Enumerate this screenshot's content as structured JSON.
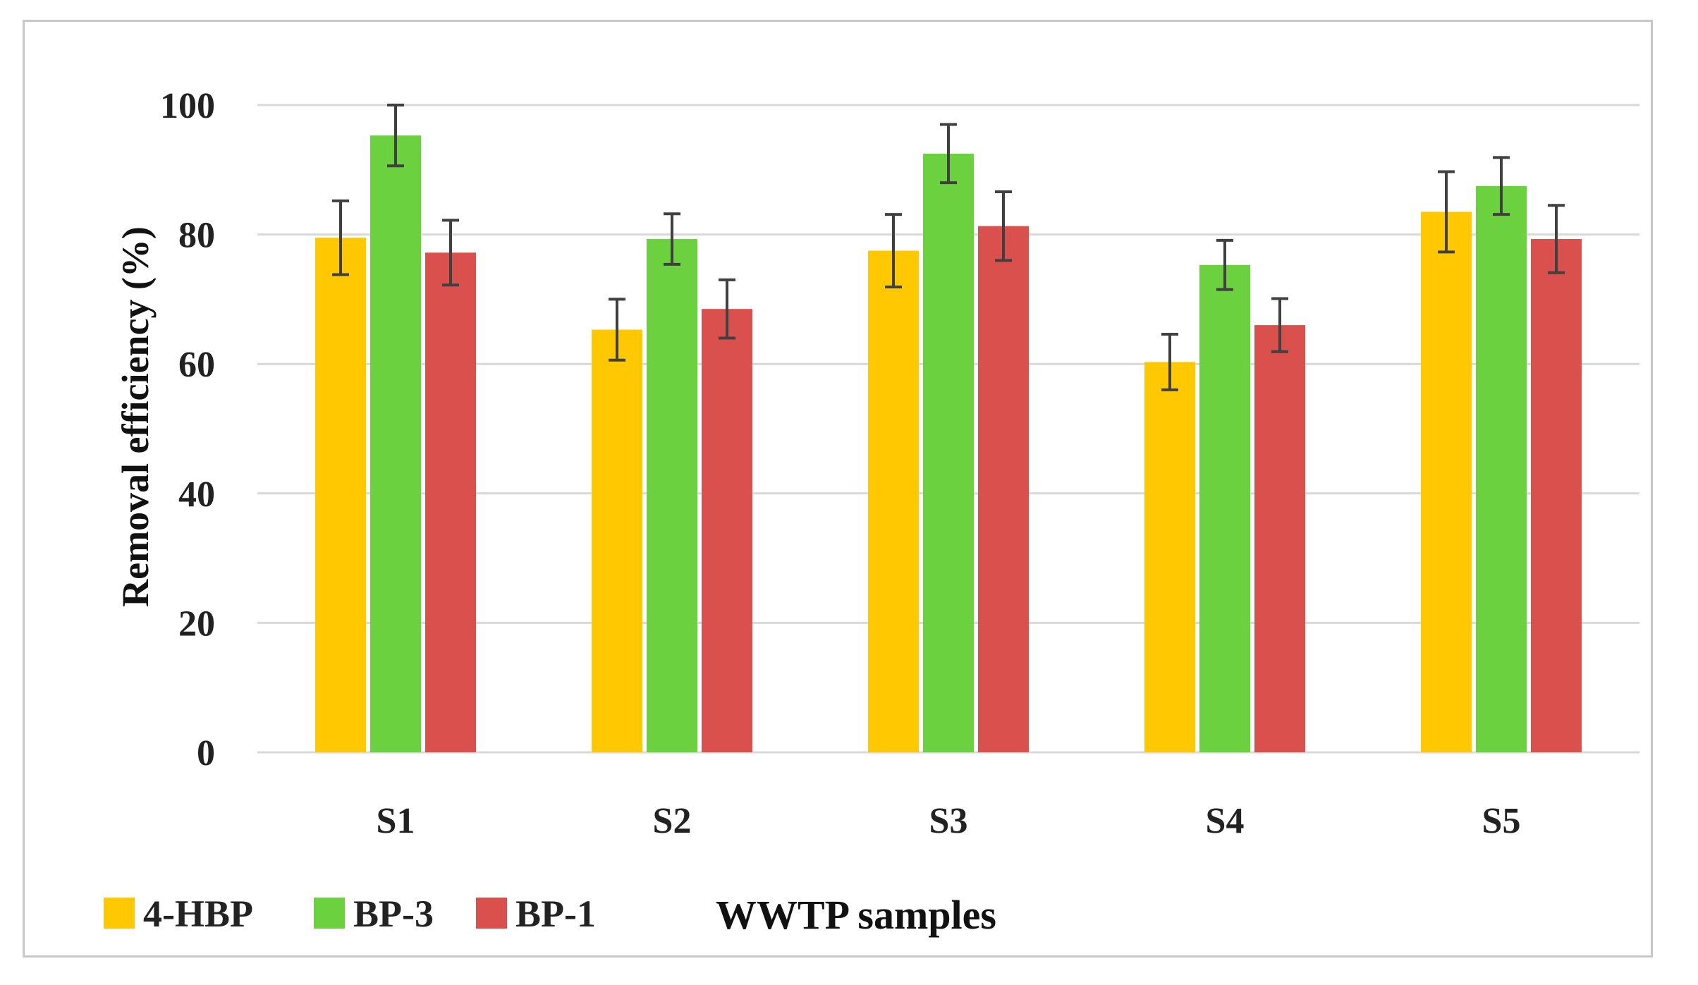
{
  "chart_data": {
    "type": "bar",
    "title": "",
    "xlabel": "WWTP samples",
    "ylabel": "Removal efficiency (%)",
    "ylim": [
      0,
      100
    ],
    "yticks": [
      0,
      20,
      40,
      60,
      80,
      100
    ],
    "grid": true,
    "legend_position": "bottom-left",
    "categories": [
      "S1",
      "S2",
      "S3",
      "S4",
      "S5"
    ],
    "series": [
      {
        "name": "4-HBP",
        "color": "#FFC800",
        "values": [
          79.5,
          65.3,
          77.5,
          60.3,
          83.5
        ],
        "errors": [
          5.7,
          4.7,
          5.6,
          4.3,
          6.2
        ]
      },
      {
        "name": "BP-3",
        "color": "#6CD13F",
        "values": [
          95.3,
          79.3,
          92.5,
          75.3,
          87.5
        ],
        "errors": [
          4.7,
          3.9,
          4.5,
          3.8,
          4.4
        ]
      },
      {
        "name": "BP-1",
        "color": "#DA504D",
        "values": [
          77.2,
          68.5,
          81.3,
          66.0,
          79.3
        ],
        "errors": [
          5.0,
          4.5,
          5.3,
          4.1,
          5.2
        ]
      }
    ]
  }
}
